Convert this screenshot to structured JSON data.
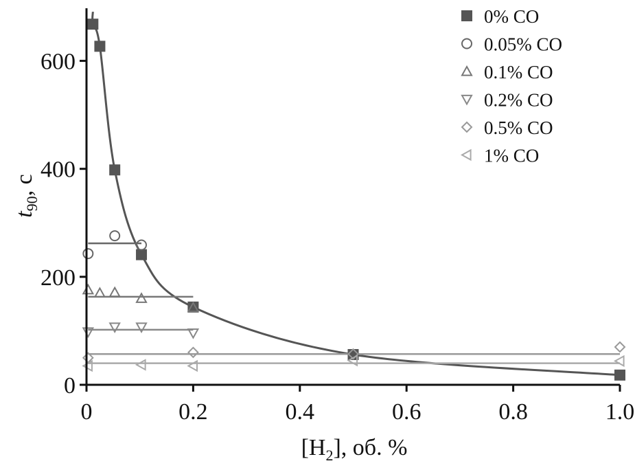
{
  "chart_data": {
    "type": "scatter",
    "xlabel": "[H2], об. %",
    "xlabel_main": "[H",
    "xlabel_sub": "2",
    "xlabel_tail": "], об. %",
    "ylabel": "t90, с",
    "ylabel_main": "t",
    "ylabel_sub": "90",
    "ylabel_tail": ", с",
    "xlim": [
      0,
      1.0
    ],
    "ylim": [
      0,
      700
    ],
    "xticks": [
      0,
      0.2,
      0.4,
      0.6,
      0.8,
      1.0
    ],
    "xtick_labels": [
      "0",
      "0.2",
      "0.4",
      "0.6",
      "0.8",
      "1.0"
    ],
    "yticks": [
      0,
      200,
      400,
      600
    ],
    "ytick_labels": [
      "0",
      "200",
      "400",
      "600"
    ],
    "grid": false,
    "legend_position": "top-right",
    "series": [
      {
        "name": "0% CO",
        "marker": "square-filled",
        "color": "#555555",
        "points": [
          [
            0.012,
            668
          ],
          [
            0.025,
            627
          ],
          [
            0.053,
            398
          ],
          [
            0.103,
            241
          ],
          [
            0.2,
            144
          ],
          [
            0.5,
            56
          ],
          [
            1.0,
            18
          ]
        ],
        "fit": {
          "kind": "curve",
          "from": 0.01,
          "to": 1.0
        }
      },
      {
        "name": "0.05% CO",
        "marker": "circle-open",
        "color": "#666666",
        "points": [
          [
            0.003,
            243
          ],
          [
            0.053,
            276
          ],
          [
            0.103,
            259
          ]
        ],
        "fit": {
          "kind": "line",
          "from": 0.003,
          "to": 0.103,
          "y": 262
        }
      },
      {
        "name": "0.1% CO",
        "marker": "triangle-up-open",
        "color": "#777777",
        "points": [
          [
            0.003,
            176
          ],
          [
            0.025,
            170
          ],
          [
            0.053,
            171
          ],
          [
            0.103,
            160
          ],
          [
            0.2,
            143
          ]
        ],
        "fit": {
          "kind": "line",
          "from": 0.003,
          "to": 0.2,
          "y": 163
        }
      },
      {
        "name": "0.2% CO",
        "marker": "triangle-down-open",
        "color": "#888888",
        "points": [
          [
            0.003,
            98
          ],
          [
            0.053,
            107
          ],
          [
            0.103,
            107
          ],
          [
            0.2,
            96
          ]
        ],
        "fit": {
          "kind": "line",
          "from": 0.003,
          "to": 0.2,
          "y": 102
        }
      },
      {
        "name": "0.5% CO",
        "marker": "diamond-open",
        "color": "#999999",
        "points": [
          [
            0.003,
            50
          ],
          [
            0.2,
            60
          ],
          [
            0.5,
            57
          ],
          [
            1.0,
            70
          ]
        ],
        "fit": {
          "kind": "line",
          "from": 0.003,
          "to": 1.0,
          "y": 57
        }
      },
      {
        "name": "1% CO",
        "marker": "triangle-left-open",
        "color": "#aaaaaa",
        "points": [
          [
            0.003,
            35
          ],
          [
            0.103,
            37
          ],
          [
            0.2,
            35
          ],
          [
            0.5,
            45
          ],
          [
            1.0,
            44
          ]
        ],
        "fit": {
          "kind": "line",
          "from": 0.003,
          "to": 1.0,
          "y": 40
        }
      }
    ]
  }
}
